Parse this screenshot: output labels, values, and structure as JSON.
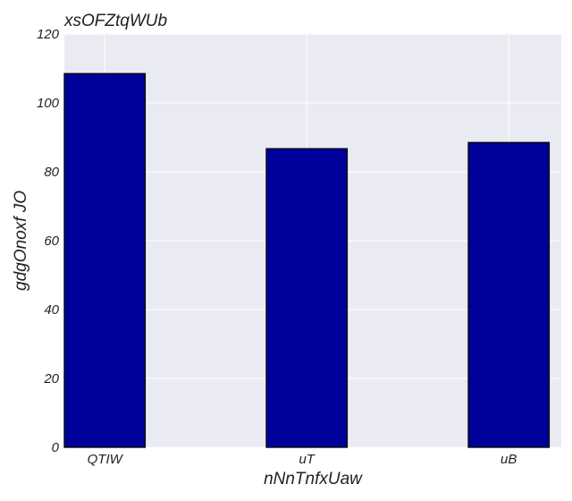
{
  "chart_data": {
    "type": "bar",
    "title": "xsOFZtqWUb",
    "xlabel": "nNnTnfxUaw",
    "ylabel": "gdgOnoxf JO",
    "categories": [
      "QTIW",
      "uT",
      "uB"
    ],
    "values": [
      108.5,
      86.7,
      88.5
    ],
    "ylim": [
      0,
      120
    ],
    "yticks": [
      0,
      20,
      40,
      60,
      80,
      100,
      120
    ],
    "grid": true,
    "legend": "none",
    "colors": {
      "bar": "#00009a",
      "bar_edge": "#000000",
      "plot_background": "#eaeaf2",
      "grid": "#ffffff"
    }
  }
}
